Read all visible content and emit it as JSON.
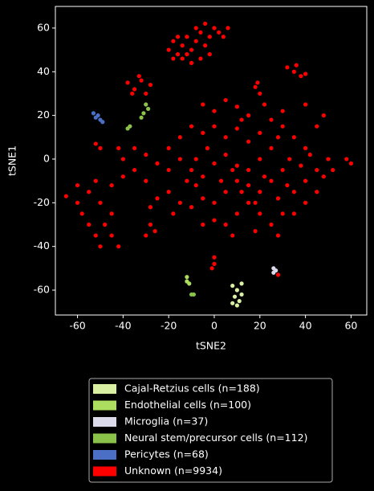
{
  "chart_data": {
    "type": "scatter",
    "xlabel": "tSNE2",
    "ylabel": "tSNE1",
    "xlim": [
      -69.7,
      66.9
    ],
    "ylim": [
      -71.4,
      69.9
    ],
    "xticks": [
      -60,
      -40,
      -20,
      0,
      20,
      40,
      60
    ],
    "yticks": [
      -60,
      -40,
      -20,
      0,
      20,
      40,
      60
    ],
    "series": [
      {
        "name": "Unknown (n=9934)",
        "color": "#ff0000",
        "x": [
          -20,
          -18,
          -16,
          -14,
          -12,
          -10,
          -8,
          -6,
          -4,
          -2,
          0,
          2,
          4,
          6,
          -14,
          -10,
          -6,
          -18,
          -8,
          -4,
          -12,
          -2,
          -16,
          35,
          32,
          38,
          36,
          40,
          -38,
          -35,
          -32,
          -30,
          -28,
          -36,
          -33,
          18,
          20,
          19,
          -5,
          0,
          5,
          10,
          15,
          -10,
          -5,
          0,
          5,
          10,
          15,
          20,
          25,
          30,
          35,
          40,
          45,
          48,
          40,
          30,
          25,
          20,
          15,
          10,
          5,
          0,
          -5,
          -10,
          -15,
          -20,
          -25,
          -30,
          -35,
          -40,
          -45,
          -20,
          -15,
          -10,
          -5,
          0,
          5,
          10,
          20,
          25,
          30,
          35,
          40,
          45,
          50,
          30,
          25,
          20,
          15,
          10,
          5,
          0,
          -5,
          35,
          40,
          45,
          28,
          18,
          8,
          -8,
          -12,
          -18,
          -28,
          -35,
          -40,
          -42,
          -30,
          -15,
          -20,
          -25,
          12,
          22,
          28,
          33,
          38,
          42,
          15,
          22,
          28,
          32,
          18,
          12,
          8,
          3,
          -3,
          -8,
          48,
          52,
          -65,
          -60,
          -58,
          -55,
          -52,
          -50,
          -48,
          -45,
          -55,
          -50,
          -45,
          -42,
          -60,
          -52,
          -28,
          -30,
          -26,
          0,
          0,
          -1,
          -52,
          -50,
          58,
          60,
          28
        ],
        "values": [
          50,
          54,
          48,
          52,
          56,
          50,
          54,
          58,
          52,
          56,
          60,
          58,
          56,
          60,
          46,
          44,
          46,
          46,
          60,
          62,
          48,
          48,
          56,
          40,
          42,
          38,
          43,
          39,
          35,
          32,
          36,
          30,
          34,
          30,
          38,
          33,
          30,
          35,
          25,
          22,
          27,
          24,
          20,
          15,
          12,
          15,
          10,
          14,
          8,
          12,
          18,
          15,
          10,
          5,
          15,
          20,
          25,
          22,
          5,
          0,
          -5,
          -10,
          -15,
          -20,
          -18,
          -22,
          -20,
          -15,
          -18,
          -10,
          -5,
          -8,
          -12,
          -5,
          0,
          -5,
          -8,
          -2,
          2,
          -3,
          -15,
          -10,
          -5,
          -15,
          -10,
          -5,
          0,
          -25,
          -30,
          -25,
          -20,
          -25,
          -30,
          -28,
          -30,
          -25,
          -20,
          -15,
          -35,
          -33,
          -35,
          -12,
          -10,
          -25,
          -22,
          5,
          0,
          5,
          2,
          10,
          5,
          -2,
          18,
          25,
          10,
          0,
          -3,
          2,
          -12,
          -8,
          -18,
          -12,
          -20,
          -15,
          -5,
          -10,
          5,
          0,
          -8,
          -5,
          -17,
          -20,
          -25,
          -30,
          -35,
          -40,
          -30,
          -25,
          -15,
          -20,
          -35,
          -40,
          -12,
          -10,
          -30,
          -35,
          -33,
          -45,
          -48,
          -50,
          7,
          5,
          0,
          -2,
          -53
        ]
      },
      {
        "name": "Cajal-Retzius cells (n=188)",
        "color": "#d9f0a3",
        "x": [
          8,
          10,
          12,
          9,
          11,
          8,
          10,
          12
        ],
        "values": [
          -58,
          -60,
          -57,
          -63,
          -65,
          -66,
          -67,
          -62
        ]
      },
      {
        "name": "Endothelial cells (n=100)",
        "color": "#addd5e",
        "x": [
          -12,
          -11,
          -12
        ],
        "values": [
          -54,
          -57,
          -56
        ]
      },
      {
        "name": "Microglia (n=37)",
        "color": "#dadaeb",
        "x": [
          26,
          27,
          26
        ],
        "values": [
          -50,
          -51,
          -52
        ]
      },
      {
        "name": "Neural stem/precursor cells (n=112)",
        "color": "#8bc34a",
        "x": [
          -30,
          -31,
          -29,
          -32,
          -38,
          -37,
          -10,
          -9
        ],
        "values": [
          25,
          21,
          23,
          19,
          14,
          15,
          -62,
          -62
        ]
      },
      {
        "name": "Pericytes (n=68)",
        "color": "#4a6fc4",
        "x": [
          -53,
          -51,
          -50,
          -52,
          -49
        ],
        "values": [
          21,
          20,
          18,
          19,
          17
        ]
      }
    ],
    "legend_order": [
      1,
      2,
      3,
      4,
      5,
      0
    ]
  }
}
